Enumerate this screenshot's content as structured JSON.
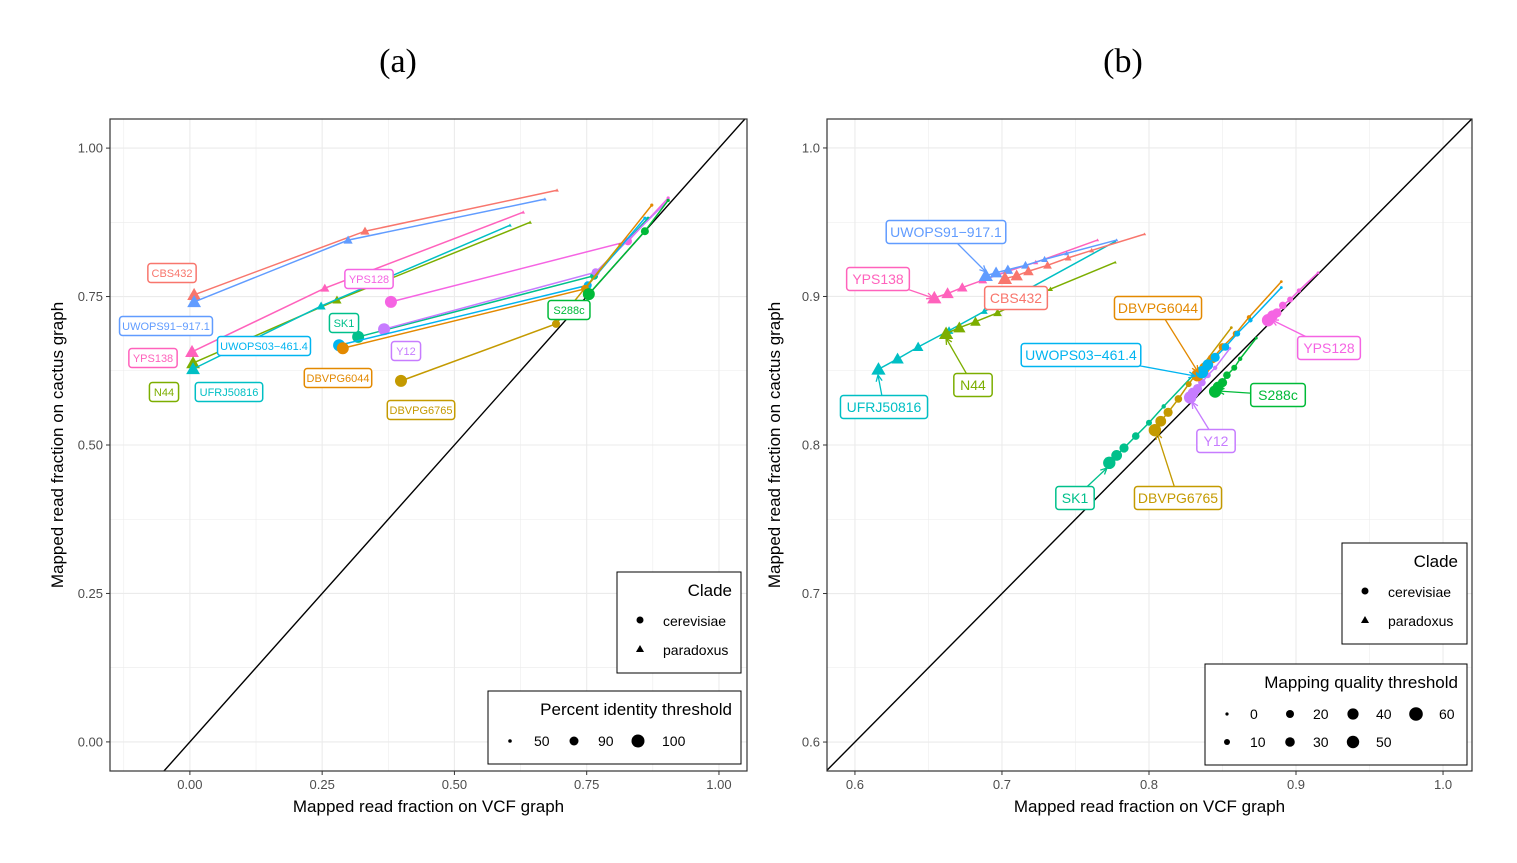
{
  "chart_data": [
    {
      "type": "line",
      "panel_label": "(a)",
      "xlabel": "Mapped read fraction on VCF graph",
      "ylabel": "Mapped read fraction on cactus graph",
      "xlim": [
        -0.151,
        1.053
      ],
      "ylim": [
        -0.049,
        1.049
      ],
      "xticks": [
        0,
        0.25,
        0.5,
        0.75,
        1.0
      ],
      "xtick_labels": [
        "0.00",
        "0.25",
        "0.50",
        "0.75",
        "1.00"
      ],
      "yticks": [
        0,
        0.25,
        0.5,
        0.75,
        1.0
      ],
      "ytick_labels": [
        "0.00",
        "0.25",
        "0.50",
        "0.75",
        "1.00"
      ],
      "grid": true,
      "reference_line": "y = x",
      "thresholds": [
        100,
        90,
        50
      ],
      "size_legend": {
        "title": "Percent identity threshold",
        "items": [
          "50",
          "90",
          "100"
        ]
      },
      "shape_legend": {
        "title": "Clade",
        "items": [
          "cerevisiae",
          "paradoxus"
        ]
      },
      "legend_placement": "bottom-right",
      "series": [
        {
          "name": "CBS432",
          "clade": "paradoxus",
          "color": "#F8766D",
          "points": [
            [
              0.008,
              0.753
            ],
            [
              0.331,
              0.86
            ],
            [
              0.694,
              0.929
            ]
          ]
        },
        {
          "name": "UWOPS91−917.1",
          "clade": "paradoxus",
          "color": "#619CFF",
          "points": [
            [
              0.008,
              0.741
            ],
            [
              0.299,
              0.845
            ],
            [
              0.671,
              0.914
            ]
          ]
        },
        {
          "name": "YPS138",
          "clade": "paradoxus",
          "color": "#FF62BC",
          "points": [
            [
              0.004,
              0.657
            ],
            [
              0.255,
              0.764
            ],
            [
              0.63,
              0.892
            ]
          ]
        },
        {
          "name": "N44",
          "clade": "paradoxus",
          "color": "#7CAE00",
          "points": [
            [
              0.006,
              0.638
            ],
            [
              0.278,
              0.744
            ],
            [
              0.643,
              0.875
            ]
          ]
        },
        {
          "name": "UFRJ50816",
          "clade": "paradoxus",
          "color": "#00BFC4",
          "points": [
            [
              0.006,
              0.628
            ],
            [
              0.248,
              0.734
            ],
            [
              0.605,
              0.87
            ]
          ]
        },
        {
          "name": "YPS128",
          "clade": "cerevisiae",
          "color": "#F564E3",
          "points": [
            [
              0.38,
              0.741
            ],
            [
              0.828,
              0.843
            ],
            [
              0.904,
              0.916
            ]
          ]
        },
        {
          "name": "SK1",
          "clade": "cerevisiae",
          "color": "#00C08B",
          "points": [
            [
              0.318,
              0.682
            ],
            [
              0.764,
              0.785
            ],
            [
              0.866,
              0.882
            ]
          ]
        },
        {
          "name": "Y12",
          "clade": "cerevisiae",
          "color": "#C77CFF",
          "points": [
            [
              0.367,
              0.695
            ],
            [
              0.767,
              0.791
            ],
            [
              0.904,
              0.912
            ]
          ]
        },
        {
          "name": "UWOPS03−461.4",
          "clade": "cerevisiae",
          "color": "#00B4F0",
          "points": [
            [
              0.282,
              0.668
            ],
            [
              0.752,
              0.769
            ],
            [
              0.86,
              0.882
            ]
          ]
        },
        {
          "name": "DBVPG6044",
          "clade": "cerevisiae",
          "color": "#E38900",
          "points": [
            [
              0.289,
              0.663
            ],
            [
              0.747,
              0.763
            ],
            [
              0.873,
              0.904
            ]
          ]
        },
        {
          "name": "DBVPG6765",
          "clade": "cerevisiae",
          "color": "#C49A00",
          "points": [
            [
              0.399,
              0.608
            ],
            [
              0.692,
              0.704
            ],
            [
              0.813,
              0.837
            ]
          ]
        },
        {
          "name": "S288c",
          "clade": "cerevisiae",
          "color": "#00BA38",
          "points": [
            [
              0.754,
              0.754
            ],
            [
              0.86,
              0.86
            ],
            [
              0.904,
              0.912
            ]
          ]
        }
      ]
    },
    {
      "type": "line",
      "panel_label": "(b)",
      "xlabel": "Mapped read fraction on VCF graph",
      "ylabel": "Mapped read fraction on cactus graph",
      "xlim": [
        0.581,
        1.0197
      ],
      "ylim": [
        0.5805,
        1.0195
      ],
      "xticks": [
        0.6,
        0.7,
        0.8,
        0.9,
        1.0
      ],
      "xtick_labels": [
        "0.6",
        "0.7",
        "0.8",
        "0.9",
        "1.0"
      ],
      "yticks": [
        0.6,
        0.7,
        0.8,
        0.9,
        1.0
      ],
      "ytick_labels": [
        "0.6",
        "0.7",
        "0.8",
        "0.9",
        "1.0"
      ],
      "grid": true,
      "reference_line": "y = x",
      "thresholds": [
        60,
        50,
        40,
        30,
        20,
        10,
        0
      ],
      "size_legend": {
        "title": "Mapping quality threshold",
        "items": [
          "0",
          "10",
          "20",
          "30",
          "40",
          "50",
          "60"
        ]
      },
      "shape_legend": {
        "title": "Clade",
        "items": [
          "cerevisiae",
          "paradoxus"
        ]
      },
      "legend_placement": "bottom-right",
      "series": [
        {
          "name": "UFRJ50816",
          "clade": "paradoxus",
          "color": "#00BFC4",
          "points": [
            [
              0.616,
              0.851
            ],
            [
              0.629,
              0.858
            ],
            [
              0.643,
              0.866
            ],
            [
              0.664,
              0.877
            ],
            [
              0.688,
              0.89
            ],
            [
              0.716,
              0.904
            ],
            [
              0.777,
              0.937
            ]
          ]
        },
        {
          "name": "N44",
          "clade": "paradoxus",
          "color": "#7CAE00",
          "points": [
            [
              0.662,
              0.875
            ],
            [
              0.671,
              0.879
            ],
            [
              0.682,
              0.883
            ],
            [
              0.697,
              0.889
            ],
            [
              0.714,
              0.897
            ],
            [
              0.733,
              0.905
            ],
            [
              0.777,
              0.923
            ]
          ]
        },
        {
          "name": "YPS138",
          "clade": "paradoxus",
          "color": "#FF62BC",
          "points": [
            [
              0.654,
              0.899
            ],
            [
              0.663,
              0.902
            ],
            [
              0.673,
              0.906
            ],
            [
              0.687,
              0.911
            ],
            [
              0.704,
              0.917
            ],
            [
              0.723,
              0.923
            ],
            [
              0.765,
              0.938
            ]
          ]
        },
        {
          "name": "UWOPS91−917.1",
          "clade": "paradoxus",
          "color": "#619CFF",
          "points": [
            [
              0.689,
              0.914
            ],
            [
              0.696,
              0.916
            ],
            [
              0.704,
              0.918
            ],
            [
              0.716,
              0.921
            ],
            [
              0.729,
              0.925
            ],
            [
              0.744,
              0.929
            ],
            [
              0.778,
              0.938
            ]
          ]
        },
        {
          "name": "CBS432",
          "clade": "paradoxus",
          "color": "#F8766D",
          "points": [
            [
              0.702,
              0.912
            ],
            [
              0.71,
              0.914
            ],
            [
              0.718,
              0.917
            ],
            [
              0.731,
              0.921
            ],
            [
              0.745,
              0.926
            ],
            [
              0.761,
              0.931
            ],
            [
              0.797,
              0.942
            ]
          ]
        },
        {
          "name": "SK1",
          "clade": "cerevisiae",
          "color": "#00C08B",
          "points": [
            [
              0.773,
              0.788
            ],
            [
              0.778,
              0.793
            ],
            [
              0.783,
              0.798
            ],
            [
              0.791,
              0.806
            ],
            [
              0.8,
              0.815
            ],
            [
              0.81,
              0.826
            ],
            [
              0.832,
              0.849
            ]
          ]
        },
        {
          "name": "DBVPG6765",
          "clade": "cerevisiae",
          "color": "#C49A00",
          "points": [
            [
              0.804,
              0.81
            ],
            [
              0.808,
              0.816
            ],
            [
              0.813,
              0.822
            ],
            [
              0.82,
              0.831
            ],
            [
              0.827,
              0.841
            ],
            [
              0.836,
              0.853
            ],
            [
              0.856,
              0.879
            ]
          ]
        },
        {
          "name": "Y12",
          "clade": "cerevisiae",
          "color": "#C77CFF",
          "points": [
            [
              0.828,
              0.832
            ],
            [
              0.83,
              0.835
            ],
            [
              0.833,
              0.838
            ],
            [
              0.836,
              0.842
            ],
            [
              0.84,
              0.847
            ],
            [
              0.845,
              0.852
            ],
            [
              0.855,
              0.865
            ]
          ]
        },
        {
          "name": "DBVPG6044",
          "clade": "cerevisiae",
          "color": "#E38900",
          "points": [
            [
              0.833,
              0.847
            ],
            [
              0.838,
              0.852
            ],
            [
              0.843,
              0.858
            ],
            [
              0.85,
              0.866
            ],
            [
              0.859,
              0.875
            ],
            [
              0.868,
              0.886
            ],
            [
              0.89,
              0.91
            ]
          ]
        },
        {
          "name": "UWOPS03−461.4",
          "clade": "cerevisiae",
          "color": "#00B4F0",
          "points": [
            [
              0.836,
              0.849
            ],
            [
              0.84,
              0.854
            ],
            [
              0.845,
              0.859
            ],
            [
              0.852,
              0.866
            ],
            [
              0.86,
              0.875
            ],
            [
              0.869,
              0.884
            ],
            [
              0.89,
              0.906
            ]
          ]
        },
        {
          "name": "S288c",
          "clade": "cerevisiae",
          "color": "#00BA38",
          "points": [
            [
              0.845,
              0.836
            ],
            [
              0.847,
              0.839
            ],
            [
              0.85,
              0.842
            ],
            [
              0.853,
              0.847
            ],
            [
              0.858,
              0.852
            ],
            [
              0.862,
              0.858
            ],
            [
              0.873,
              0.872
            ]
          ]
        },
        {
          "name": "YPS128",
          "clade": "cerevisiae",
          "color": "#F564E3",
          "points": [
            [
              0.881,
              0.884
            ],
            [
              0.884,
              0.887
            ],
            [
              0.887,
              0.889
            ],
            [
              0.891,
              0.894
            ],
            [
              0.896,
              0.898
            ],
            [
              0.902,
              0.904
            ],
            [
              0.915,
              0.916
            ]
          ]
        }
      ]
    }
  ]
}
